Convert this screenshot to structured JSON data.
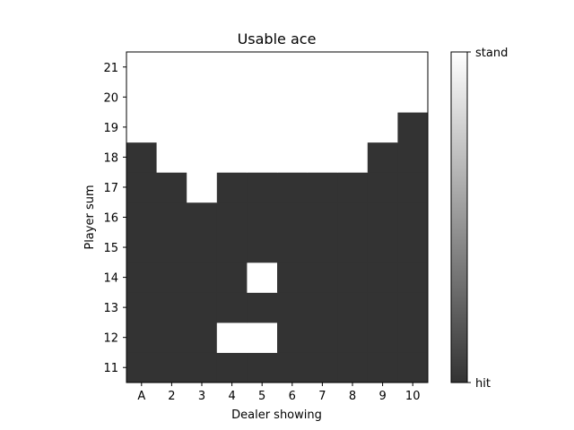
{
  "chart_data": {
    "type": "heatmap",
    "title": "Usable ace",
    "xlabel": "Dealer showing",
    "ylabel": "Player sum",
    "x_categories": [
      "A",
      "2",
      "3",
      "4",
      "5",
      "6",
      "7",
      "8",
      "9",
      "10"
    ],
    "y_categories": [
      "11",
      "12",
      "13",
      "14",
      "15",
      "16",
      "17",
      "18",
      "19",
      "20",
      "21"
    ],
    "value_labels": {
      "0": "hit",
      "1": "stand"
    },
    "values": [
      [
        0,
        0,
        0,
        0,
        0,
        0,
        0,
        0,
        0,
        0
      ],
      [
        0,
        0,
        0,
        1,
        1,
        0,
        0,
        0,
        0,
        0
      ],
      [
        0,
        0,
        0,
        0,
        0,
        0,
        0,
        0,
        0,
        0
      ],
      [
        0,
        0,
        0,
        0,
        1,
        0,
        0,
        0,
        0,
        0
      ],
      [
        0,
        0,
        0,
        0,
        0,
        0,
        0,
        0,
        0,
        0
      ],
      [
        0,
        0,
        0,
        0,
        0,
        0,
        0,
        0,
        0,
        0
      ],
      [
        0,
        0,
        1,
        0,
        0,
        0,
        0,
        0,
        0,
        0
      ],
      [
        0,
        1,
        1,
        1,
        1,
        1,
        1,
        1,
        0,
        0
      ],
      [
        1,
        1,
        1,
        1,
        1,
        1,
        1,
        1,
        1,
        0
      ],
      [
        1,
        1,
        1,
        1,
        1,
        1,
        1,
        1,
        1,
        1
      ],
      [
        1,
        1,
        1,
        1,
        1,
        1,
        1,
        1,
        1,
        1
      ]
    ],
    "colormap": {
      "low": "#333333",
      "high": "#ffffff"
    },
    "colorbar": {
      "ticks": [
        "hit",
        "stand"
      ],
      "range": [
        0,
        1
      ]
    },
    "grid": false
  }
}
